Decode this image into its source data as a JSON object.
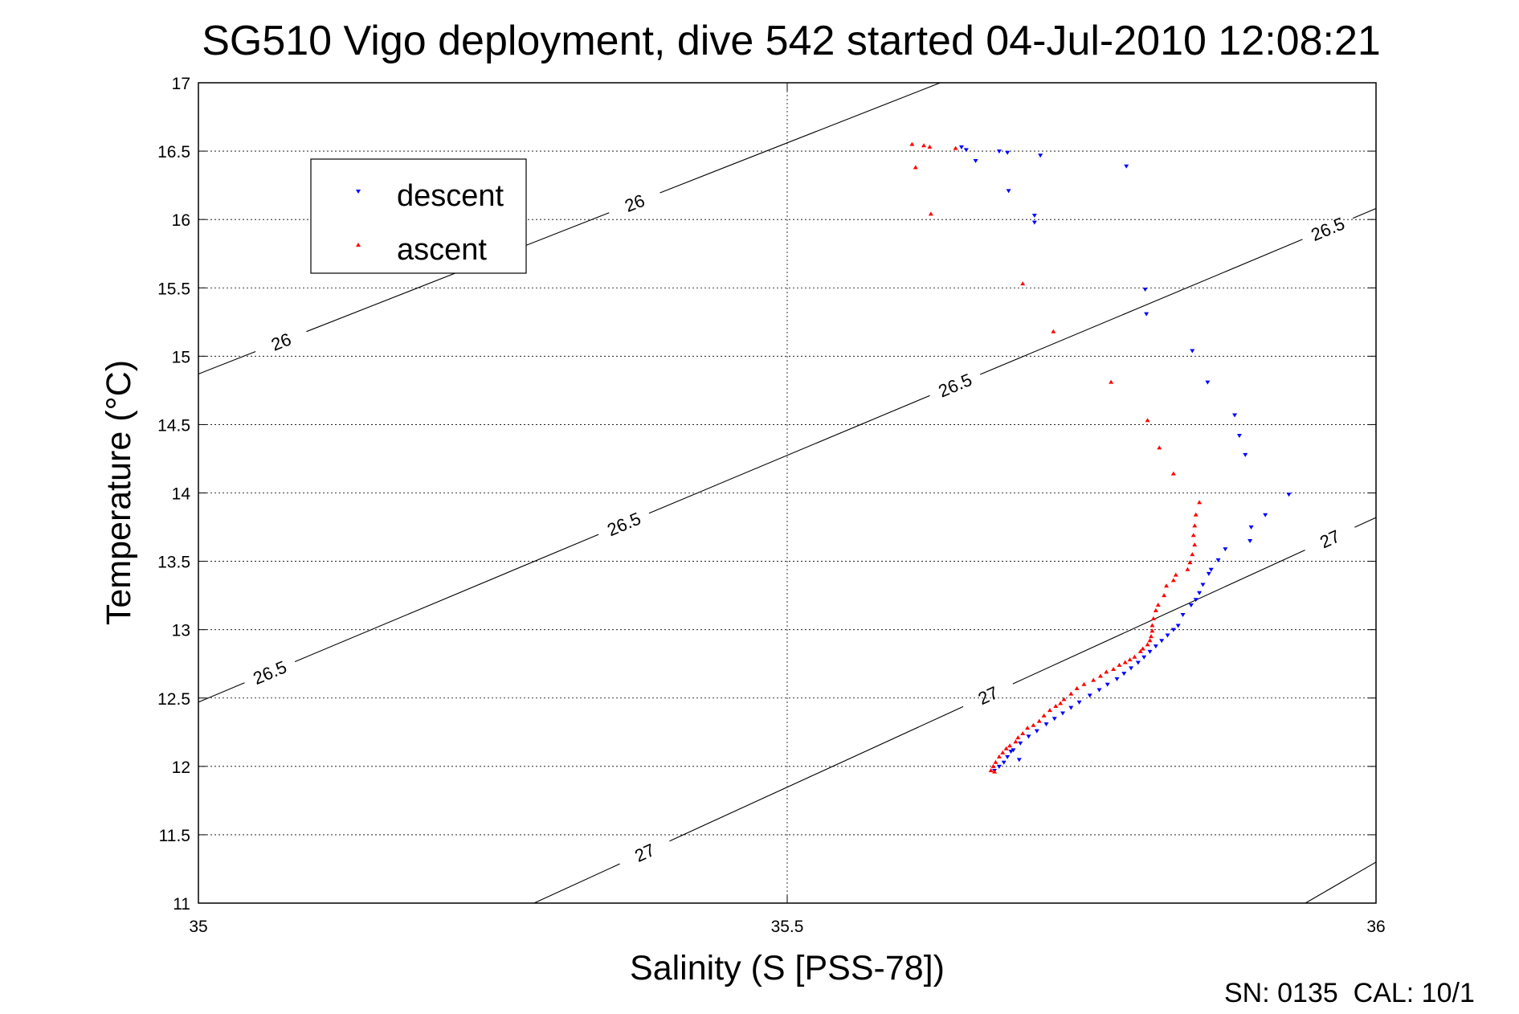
{
  "chart_data": {
    "type": "scatter",
    "title": "SG510 Vigo deployment, dive 542 started 04-Jul-2010 12:08:21",
    "xlabel": "Salinity (S [PSS-78])",
    "ylabel": "Temperature (°C)",
    "xlim": [
      35,
      36
    ],
    "ylim": [
      11,
      17
    ],
    "xticks": [
      35,
      35.5,
      36
    ],
    "xtick_labels": [
      "35",
      "35.5",
      "36"
    ],
    "yticks": [
      11,
      11.5,
      12,
      12.5,
      13,
      13.5,
      14,
      14.5,
      15,
      15.5,
      16,
      16.5,
      17
    ],
    "ytick_labels": [
      "11",
      "11.5",
      "12",
      "12.5",
      "13",
      "13.5",
      "14",
      "14.5",
      "15",
      "15.5",
      "16",
      "16.5",
      "17"
    ],
    "grid": true,
    "legend_position": "upper-left",
    "density_contours": [
      {
        "label": "26",
        "points": [
          [
            35.0,
            14.87
          ],
          [
            35.63,
            17.0
          ]
        ],
        "labels_at": [
          [
            35.07,
            15.11
          ],
          [
            35.37,
            16.13
          ]
        ]
      },
      {
        "label": "26.5",
        "points": [
          [
            35.0,
            12.47
          ],
          [
            36.0,
            16.08
          ]
        ],
        "labels_at": [
          [
            35.06,
            12.7
          ],
          [
            35.36,
            13.8
          ],
          [
            35.64,
            14.84
          ],
          [
            35.96,
            15.91
          ]
        ]
      },
      {
        "label": "27",
        "points": [
          [
            35.285,
            11.0
          ],
          [
            36.0,
            13.82
          ]
        ],
        "labels_at": [
          [
            35.38,
            11.35
          ],
          [
            35.67,
            12.53
          ],
          [
            35.96,
            13.68
          ]
        ]
      },
      {
        "label": "",
        "points": [
          [
            35.94,
            11.0
          ],
          [
            36.0,
            11.3
          ]
        ],
        "labels_at": []
      }
    ],
    "series": [
      {
        "name": "descent",
        "color": "#0000ff",
        "marker": "triangle-down",
        "points": [
          [
            35.648,
            16.53
          ],
          [
            35.652,
            16.51
          ],
          [
            35.66,
            16.43
          ],
          [
            35.68,
            16.5
          ],
          [
            35.687,
            16.49
          ],
          [
            35.715,
            16.47
          ],
          [
            35.788,
            16.39
          ],
          [
            35.688,
            16.21
          ],
          [
            35.71,
            16.03
          ],
          [
            35.71,
            15.98
          ],
          [
            35.804,
            15.49
          ],
          [
            35.805,
            15.31
          ],
          [
            35.844,
            15.04
          ],
          [
            35.857,
            14.81
          ],
          [
            35.88,
            14.57
          ],
          [
            35.884,
            14.42
          ],
          [
            35.889,
            14.28
          ],
          [
            35.926,
            13.99
          ],
          [
            35.906,
            13.84
          ],
          [
            35.894,
            13.75
          ],
          [
            35.893,
            13.65
          ],
          [
            35.872,
            13.59
          ],
          [
            35.866,
            13.51
          ],
          [
            35.86,
            13.44
          ],
          [
            35.858,
            13.41
          ],
          [
            35.853,
            13.33
          ],
          [
            35.85,
            13.27
          ],
          [
            35.847,
            13.22
          ],
          [
            35.843,
            13.18
          ],
          [
            35.836,
            13.11
          ],
          [
            35.832,
            13.03
          ],
          [
            35.828,
            13.0
          ],
          [
            35.823,
            12.96
          ],
          [
            35.818,
            12.92
          ],
          [
            35.813,
            12.88
          ],
          [
            35.808,
            12.84
          ],
          [
            35.803,
            12.8
          ],
          [
            35.798,
            12.76
          ],
          [
            35.792,
            12.72
          ],
          [
            35.786,
            12.68
          ],
          [
            35.78,
            12.64
          ],
          [
            35.772,
            12.6
          ],
          [
            35.765,
            12.56
          ],
          [
            35.757,
            12.52
          ],
          [
            35.748,
            12.47
          ],
          [
            35.741,
            12.43
          ],
          [
            35.734,
            12.39
          ],
          [
            35.727,
            12.35
          ],
          [
            35.72,
            12.31
          ],
          [
            35.712,
            12.26
          ],
          [
            35.705,
            12.22
          ],
          [
            35.698,
            12.17
          ],
          [
            35.692,
            12.12
          ],
          [
            35.687,
            12.07
          ],
          [
            35.684,
            12.03
          ],
          [
            35.68,
            12.0
          ],
          [
            35.676,
            11.97
          ],
          [
            35.69,
            12.11
          ],
          [
            35.697,
            12.05
          ]
        ]
      },
      {
        "name": "ascent",
        "color": "#ff0000",
        "marker": "triangle-up",
        "points": [
          [
            35.606,
            16.55
          ],
          [
            35.616,
            16.54
          ],
          [
            35.621,
            16.53
          ],
          [
            35.643,
            16.52
          ],
          [
            35.609,
            16.38
          ],
          [
            35.622,
            16.04
          ],
          [
            35.7,
            15.53
          ],
          [
            35.726,
            15.18
          ],
          [
            35.775,
            14.81
          ],
          [
            35.806,
            14.53
          ],
          [
            35.816,
            14.33
          ],
          [
            35.828,
            14.14
          ],
          [
            35.85,
            13.93
          ],
          [
            35.847,
            13.84
          ],
          [
            35.846,
            13.76
          ],
          [
            35.845,
            13.69
          ],
          [
            35.846,
            13.62
          ],
          [
            35.844,
            13.55
          ],
          [
            35.842,
            13.49
          ],
          [
            35.84,
            13.44
          ],
          [
            35.83,
            13.4
          ],
          [
            35.828,
            13.36
          ],
          [
            35.822,
            13.32
          ],
          [
            35.82,
            13.25
          ],
          [
            35.815,
            13.18
          ],
          [
            35.813,
            13.14
          ],
          [
            35.811,
            13.08
          ],
          [
            35.81,
            13.03
          ],
          [
            35.81,
            12.99
          ],
          [
            35.809,
            12.95
          ],
          [
            35.808,
            12.92
          ],
          [
            35.806,
            12.89
          ],
          [
            35.802,
            12.86
          ],
          [
            35.8,
            12.84
          ],
          [
            35.795,
            12.8
          ],
          [
            35.791,
            12.78
          ],
          [
            35.787,
            12.76
          ],
          [
            35.782,
            12.74
          ],
          [
            35.777,
            12.71
          ],
          [
            35.771,
            12.69
          ],
          [
            35.766,
            12.66
          ],
          [
            35.76,
            12.63
          ],
          [
            35.752,
            12.6
          ],
          [
            35.746,
            12.57
          ],
          [
            35.741,
            12.53
          ],
          [
            35.735,
            12.49
          ],
          [
            35.732,
            12.46
          ],
          [
            35.728,
            12.44
          ],
          [
            35.723,
            12.41
          ],
          [
            35.718,
            12.37
          ],
          [
            35.714,
            12.33
          ],
          [
            35.709,
            12.3
          ],
          [
            35.704,
            12.28
          ],
          [
            35.7,
            12.24
          ],
          [
            35.696,
            12.21
          ],
          [
            35.694,
            12.18
          ],
          [
            35.689,
            12.15
          ],
          [
            35.686,
            12.13
          ],
          [
            35.683,
            12.1
          ],
          [
            35.68,
            12.07
          ],
          [
            35.677,
            12.03
          ],
          [
            35.675,
            12.0
          ],
          [
            35.673,
            11.97
          ],
          [
            35.676,
            11.96
          ]
        ]
      }
    ],
    "footer": "SN: 0135  CAL: 10/1"
  }
}
